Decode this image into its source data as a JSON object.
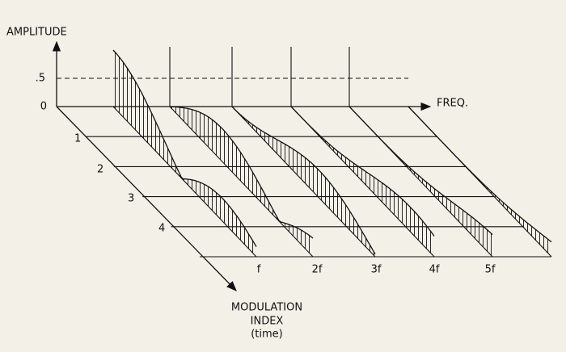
{
  "axis_labels": {
    "amplitude": "AMPLITUDE",
    "frequency": "FREQ.",
    "modulation_index": [
      "MODULATION",
      "INDEX",
      "(time)"
    ]
  },
  "amplitude_ticks": [
    ".5",
    "0"
  ],
  "index_ticks": [
    "1",
    "2",
    "3",
    "4"
  ],
  "frequency_ticks": [
    "f",
    "2f",
    "3f",
    "4f",
    "5f"
  ]
}
